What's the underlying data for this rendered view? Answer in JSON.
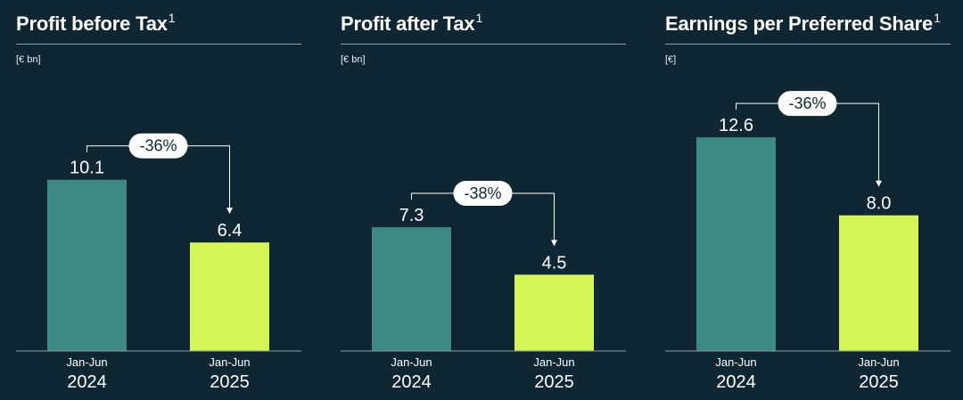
{
  "colors": {
    "background": "#0f2733",
    "bar_2024": "#3d8a82",
    "bar_2025": "#d4f556",
    "text": "#ffffff",
    "rule": "#8c9ba3",
    "bubble": "#ffffff"
  },
  "chart_data": [
    {
      "type": "bar",
      "title": "Profit before Tax",
      "title_superscript": "1",
      "unit": "[€ bn]",
      "categories": [
        {
          "period": "Jan-Jun",
          "year": "2024"
        },
        {
          "period": "Jan-Jun",
          "year": "2025"
        }
      ],
      "values": [
        10.1,
        6.4
      ],
      "value_labels": [
        "10.1",
        "6.4"
      ],
      "change_label": "-36%",
      "ylim": [
        0,
        16.6
      ],
      "grid": false
    },
    {
      "type": "bar",
      "title": "Profit after Tax",
      "title_superscript": "1",
      "unit": "[€ bn]",
      "categories": [
        {
          "period": "Jan-Jun",
          "year": "2024"
        },
        {
          "period": "Jan-Jun",
          "year": "2025"
        }
      ],
      "values": [
        7.3,
        4.5
      ],
      "value_labels": [
        "7.3",
        "4.5"
      ],
      "change_label": "-38%",
      "ylim": [
        0,
        16.6
      ],
      "grid": false
    },
    {
      "type": "bar",
      "title": "Earnings per Preferred Share",
      "title_superscript": "1",
      "unit": "[€]",
      "categories": [
        {
          "period": "Jan-Jun",
          "year": "2024"
        },
        {
          "period": "Jan-Jun",
          "year": "2025"
        }
      ],
      "values": [
        12.6,
        8.0
      ],
      "value_labels": [
        "12.6",
        "8.0"
      ],
      "change_label": "-36%",
      "ylim": [
        0,
        16.6
      ],
      "grid": false
    }
  ]
}
